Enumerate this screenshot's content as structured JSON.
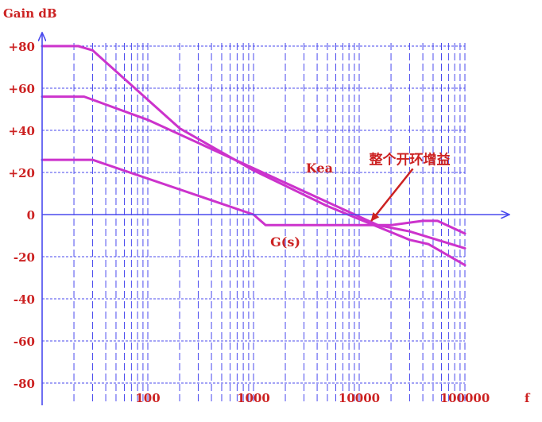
{
  "chart_data": {
    "type": "line",
    "ylabel": "Gain dB",
    "xlabel": "f",
    "x_scale": "log",
    "xlim": [
      10,
      100000
    ],
    "ylim": [
      -80,
      80
    ],
    "y_ticks": [
      80,
      60,
      40,
      20,
      0,
      -20,
      -40,
      -60,
      -80
    ],
    "y_tick_labels": [
      "+80",
      "+60",
      "+40",
      "+20",
      "0",
      "-20",
      "-40",
      "-60",
      "-80"
    ],
    "x_ticks": [
      100,
      1000,
      10000,
      100000
    ],
    "x_tick_labels": [
      "100",
      "1000",
      "10000",
      "100000"
    ],
    "grid": true,
    "series": [
      {
        "name": "",
        "points": [
          [
            10,
            80
          ],
          [
            22,
            80
          ],
          [
            30,
            78
          ],
          [
            200,
            41
          ],
          [
            1000,
            21
          ],
          [
            5000,
            4
          ],
          [
            30000,
            -12
          ],
          [
            45000,
            -14
          ],
          [
            100000,
            -24
          ]
        ]
      },
      {
        "name": "Kea",
        "points": [
          [
            10,
            56
          ],
          [
            25,
            56
          ],
          [
            100,
            45
          ],
          [
            1000,
            22
          ],
          [
            15000,
            -5
          ],
          [
            30000,
            -8
          ],
          [
            100000,
            -16
          ]
        ]
      },
      {
        "name": "G(s)",
        "points": [
          [
            10,
            26
          ],
          [
            30,
            26
          ],
          [
            1000,
            0
          ],
          [
            1300,
            -5
          ],
          [
            20000,
            -5
          ],
          [
            40000,
            -3
          ],
          [
            55000,
            -3
          ],
          [
            100000,
            -9
          ]
        ]
      }
    ],
    "annotations": [
      {
        "text": "整个开环增益",
        "x": 30000,
        "y": 24,
        "arrow_to": [
          13000,
          -3
        ]
      }
    ],
    "colors": {
      "series": "#cc33cc",
      "axis": "#4a4aee",
      "grid": "#4a4aee",
      "text": "#cc2222"
    }
  }
}
